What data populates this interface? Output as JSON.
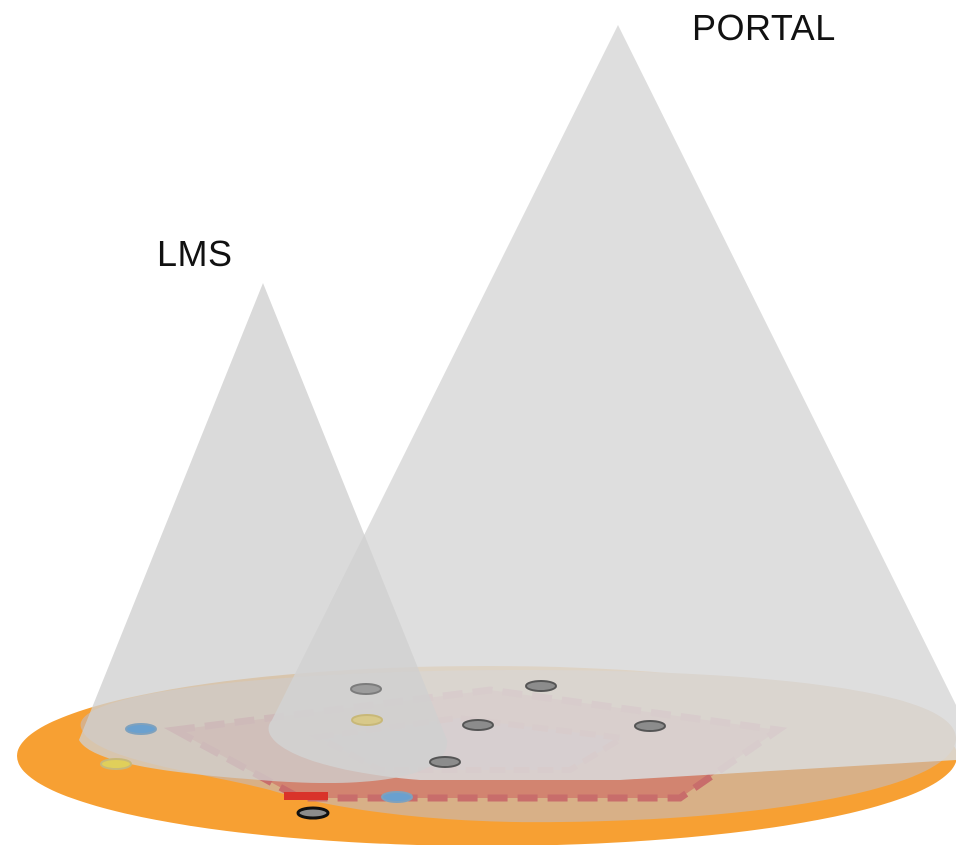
{
  "labels": {
    "portal": "PORTAL",
    "lms": "LMS"
  },
  "colors": {
    "base_orange": "#f7a033",
    "base_tan": "#d8b087",
    "pentagon_outer": "#d2826f",
    "pentagon_border": "#c86a6a",
    "pentagon_inner": "#c08490",
    "cone_gray": "#d9d9d9",
    "node_gray": "#8c8c8c",
    "node_blue": "#6aa0cf",
    "node_yellow": "#e0cf5a",
    "node_red": "#d9332a"
  }
}
